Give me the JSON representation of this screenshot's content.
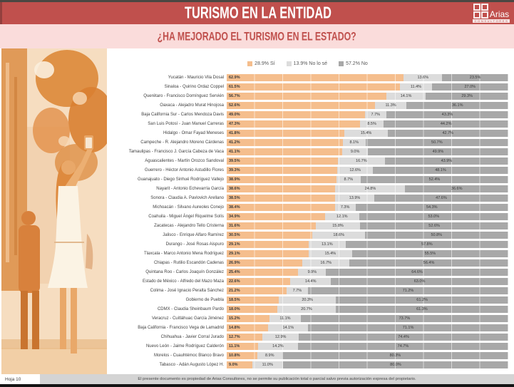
{
  "header": {
    "title": "TURISMO EN LA ENTIDAD"
  },
  "logo": {
    "name": "Arias",
    "subtext": "CONSULTORES"
  },
  "subtitle": "¿HA MEJORADO EL TURISMO EN EL ESTADO?",
  "legend": [
    {
      "label": "28.9% Sí",
      "color": "#f5be8d"
    },
    {
      "label": "13.9% No lo sé",
      "color": "#dcdcdc"
    },
    {
      "label": "57.2% No",
      "color": "#a8a8a8"
    }
  ],
  "footer": {
    "page": "Hoja 10",
    "notice": "El presente documento es propiedad de Arias Consultores, no se permite su publicación total o parcial salvo previa autorización expresa del propietario."
  },
  "brand_colors": {
    "banner_red": "#c0504d",
    "strip_pink": "#fadcdb"
  },
  "chart_data": {
    "type": "bar",
    "variant": "horizontal-100%-stacked",
    "grid": "vertical lines every 10%",
    "legend_position": "top-center",
    "xlim": [
      0,
      100
    ],
    "overall": {
      "si": 28.9,
      "no_lo_se": 13.9,
      "no": 57.2
    },
    "categories": [
      "Yucatán  - Mauricio Vila Dosal",
      "Sinaloa - Quirino Ordaz Coppel",
      "Querétaro - Francisco Domínguez Servién",
      "Oaxaca  - Alejadro Murat Hinojosa",
      "Baja California Sur - Carlos Mendoza Davis",
      "San Luis Potosí - Juan Manuel Carreras",
      "Hidalgo - Omar Fayad Meneses",
      "Campeche - R. Alejandro Moreno Cárdenas",
      "Tamaulipas - Francisco J. García Cabeza de Vaca",
      "Aguascalientes - Martín Orozco Sandoval",
      "Guerrero - Héctor Antonio Astudillo Flores",
      "Guanajuato - Diego Sinhué Rodríguez Vallejo",
      "Nayarit - Antonio Echevarría García",
      "Sonora - Claudia A. Pavlovich Arellano",
      "Michoacán - Silvano Aureoles Conejo",
      "Coahuila - Miguel Ángel Riquelme Solís",
      "Zacatecas - Alejandro Tello Cristerna",
      "Jalisco - Enrique Alfaro Ramírez",
      "Durango - José Rosas Aispuro",
      "Tlaxcala - Marco Antonio Mena Rodríguez",
      "Chiapas - Rutilio Escandón Cadenas",
      "Quintana Roo - Carlos Joaquín González",
      "Estado de México - Alfredo del Mazo Maza",
      "Colima - José Ignacio Peralta Sánchez",
      "Gobierno de Puebla",
      "CDMX - Claudia Sheinbaum Pardo",
      "Veracruz - Cuitláhuac García Jiménez",
      "Baja California - Francisco Vega de Lamadrid",
      "Chihuahua - Javier Corral Jurado",
      "Nuevo León  - Jaime Rodríguez Calderón",
      "Morelos - Cuauhtémoc Blanco Bravo",
      "Tabasco - Adán Augusto López H."
    ],
    "series": [
      {
        "name": "Sí",
        "color": "#f5be8d",
        "values": [
          62.9,
          61.5,
          56.7,
          52.6,
          49.0,
          47.3,
          41.8,
          41.2,
          41.1,
          39.5,
          39.3,
          38.9,
          38.6,
          38.5,
          38.4,
          34.9,
          31.6,
          30.5,
          29.1,
          29.1,
          26.9,
          25.4,
          22.6,
          21.2,
          18.5,
          18.0,
          15.2,
          14.8,
          12.7,
          11.1,
          10.8,
          9.0
        ]
      },
      {
        "name": "No lo sé",
        "color": "#dcdcdc",
        "values": [
          13.6,
          11.4,
          14.1,
          11.3,
          7.7,
          8.5,
          15.4,
          8.1,
          9.0,
          16.7,
          12.6,
          8.7,
          24.8,
          13.9,
          7.3,
          12.1,
          15.8,
          18.6,
          13.1,
          15.4,
          16.7,
          9.9,
          14.4,
          7.7,
          20.3,
          20.7,
          11.1,
          14.1,
          12.9,
          14.2,
          8.9,
          11.0
        ]
      },
      {
        "name": "No",
        "color": "#a8a8a8",
        "values": [
          23.5,
          27.0,
          29.3,
          36.1,
          43.3,
          44.2,
          42.7,
          50.7,
          49.9,
          43.9,
          48.1,
          52.4,
          36.6,
          47.6,
          54.3,
          53.0,
          52.6,
          50.8,
          57.8,
          55.5,
          56.4,
          64.6,
          63.0,
          71.2,
          61.2,
          61.3,
          73.7,
          71.1,
          74.4,
          74.7,
          80.3,
          80.0
        ]
      }
    ]
  }
}
